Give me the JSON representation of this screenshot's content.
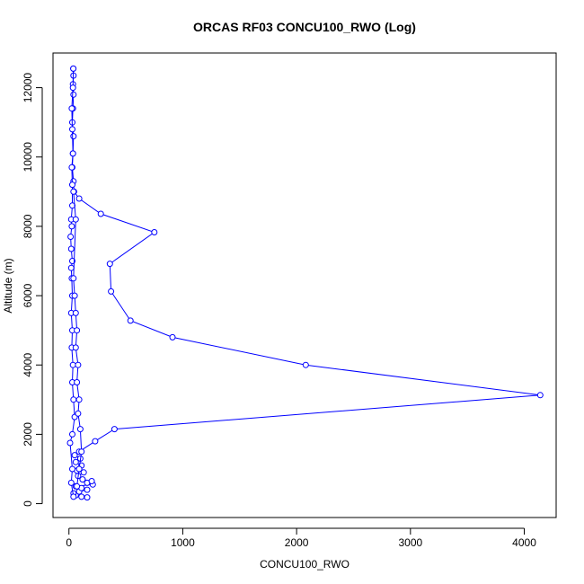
{
  "chart_data": {
    "type": "scatter",
    "title": "ORCAS RF03 CONCU100_RWO (Log)",
    "xlabel": "CONCU100_RWO",
    "ylabel": "Altitude (m)",
    "xlim": [
      -140,
      4280
    ],
    "ylim": [
      -400,
      13000
    ],
    "xticks": [
      0,
      1000,
      2000,
      3000,
      4000
    ],
    "yticks": [
      0,
      2000,
      4000,
      6000,
      8000,
      10000,
      12000
    ],
    "grid": false,
    "legend": "none",
    "colors": {
      "series": "#0000ff",
      "axis": "#000000"
    },
    "series": [
      {
        "values": [
          {
            "x": 160,
            "y": 180
          },
          {
            "x": 110,
            "y": 200
          },
          {
            "x": 60,
            "y": 240
          },
          {
            "x": 40,
            "y": 300
          },
          {
            "x": 90,
            "y": 350
          },
          {
            "x": 160,
            "y": 400
          },
          {
            "x": 110,
            "y": 450
          },
          {
            "x": 60,
            "y": 500
          },
          {
            "x": 210,
            "y": 550
          },
          {
            "x": 160,
            "y": 600
          },
          {
            "x": 200,
            "y": 650
          },
          {
            "x": 120,
            "y": 700
          },
          {
            "x": 80,
            "y": 800
          },
          {
            "x": 130,
            "y": 900
          },
          {
            "x": 70,
            "y": 950
          },
          {
            "x": 110,
            "y": 1100
          },
          {
            "x": 60,
            "y": 1200
          },
          {
            "x": 100,
            "y": 1300
          },
          {
            "x": 50,
            "y": 1400
          },
          {
            "x": 90,
            "y": 1500
          },
          {
            "x": 230,
            "y": 1800
          },
          {
            "x": 400,
            "y": 2150
          },
          {
            "x": 4140,
            "y": 3130
          },
          {
            "x": 2080,
            "y": 4000
          },
          {
            "x": 910,
            "y": 4800
          },
          {
            "x": 540,
            "y": 5280
          },
          {
            "x": 370,
            "y": 6120
          },
          {
            "x": 360,
            "y": 6920
          },
          {
            "x": 750,
            "y": 7830
          },
          {
            "x": 280,
            "y": 8360
          },
          {
            "x": 90,
            "y": 8800
          },
          {
            "x": 45,
            "y": 9000
          },
          {
            "x": 40,
            "y": 9300
          },
          {
            "x": 30,
            "y": 9700
          },
          {
            "x": 35,
            "y": 10100
          },
          {
            "x": 40,
            "y": 10600
          },
          {
            "x": 30,
            "y": 11000
          },
          {
            "x": 35,
            "y": 11400
          },
          {
            "x": 40,
            "y": 11800
          },
          {
            "x": 35,
            "y": 12100
          },
          {
            "x": 40,
            "y": 12350
          },
          {
            "x": 38,
            "y": 12550
          }
        ]
      },
      {
        "values": [
          {
            "x": 40,
            "y": 200
          },
          {
            "x": 20,
            "y": 600
          },
          {
            "x": 30,
            "y": 1000
          },
          {
            "x": 10,
            "y": 1750
          },
          {
            "x": 30,
            "y": 2000
          },
          {
            "x": 50,
            "y": 2500
          },
          {
            "x": 40,
            "y": 3000
          },
          {
            "x": 30,
            "y": 3500
          },
          {
            "x": 35,
            "y": 4000
          },
          {
            "x": 25,
            "y": 4500
          },
          {
            "x": 30,
            "y": 5000
          },
          {
            "x": 20,
            "y": 5500
          },
          {
            "x": 30,
            "y": 6000
          },
          {
            "x": 25,
            "y": 6500
          },
          {
            "x": 20,
            "y": 6800
          },
          {
            "x": 30,
            "y": 7000
          },
          {
            "x": 20,
            "y": 7350
          },
          {
            "x": 15,
            "y": 7700
          },
          {
            "x": 25,
            "y": 8000
          },
          {
            "x": 20,
            "y": 8200
          },
          {
            "x": 30,
            "y": 8600
          },
          {
            "x": 30,
            "y": 9200
          },
          {
            "x": 25,
            "y": 9700
          },
          {
            "x": 35,
            "y": 10100
          },
          {
            "x": 30,
            "y": 10800
          },
          {
            "x": 25,
            "y": 11400
          },
          {
            "x": 35,
            "y": 12000
          },
          {
            "x": 38,
            "y": 12550
          }
        ]
      },
      {
        "values": [
          {
            "x": 70,
            "y": 500
          },
          {
            "x": 90,
            "y": 1000
          },
          {
            "x": 110,
            "y": 1500
          },
          {
            "x": 100,
            "y": 2150
          },
          {
            "x": 80,
            "y": 2600
          },
          {
            "x": 90,
            "y": 3000
          },
          {
            "x": 70,
            "y": 3500
          },
          {
            "x": 80,
            "y": 4000
          },
          {
            "x": 60,
            "y": 4500
          },
          {
            "x": 70,
            "y": 5000
          },
          {
            "x": 60,
            "y": 5500
          },
          {
            "x": 50,
            "y": 6000
          },
          {
            "x": 40,
            "y": 6500
          },
          {
            "x": 60,
            "y": 8200
          },
          {
            "x": 40,
            "y": 9000
          }
        ]
      }
    ]
  }
}
